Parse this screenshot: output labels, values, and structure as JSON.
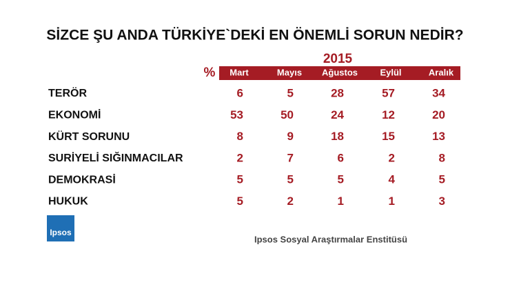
{
  "title": "SİZCE ŞU ANDA TÜRKİYE`DEKİ EN ÖNEMLİ SORUN NEDİR?",
  "table": {
    "year": "2015",
    "unit": "%",
    "columns": [
      "Mart",
      "Mayıs",
      "Ağustos",
      "Eylül",
      "Aralık"
    ],
    "rows": [
      {
        "label": "TERÖR",
        "values": [
          6,
          5,
          28,
          57,
          34
        ]
      },
      {
        "label": "EKONOMİ",
        "values": [
          53,
          50,
          24,
          12,
          20
        ]
      },
      {
        "label": "KÜRT SORUNU",
        "values": [
          8,
          9,
          18,
          15,
          13
        ]
      },
      {
        "label": "SURİYELİ SIĞINMACILAR",
        "values": [
          2,
          7,
          6,
          2,
          8
        ]
      },
      {
        "label": "DEMOKRASİ",
        "values": [
          5,
          5,
          5,
          4,
          5
        ]
      },
      {
        "label": "HUKUK",
        "values": [
          5,
          2,
          1,
          1,
          3
        ]
      }
    ]
  },
  "logo": "Ipsos",
  "footer": "Ipsos Sosyal Araştırmalar Enstitüsü"
}
